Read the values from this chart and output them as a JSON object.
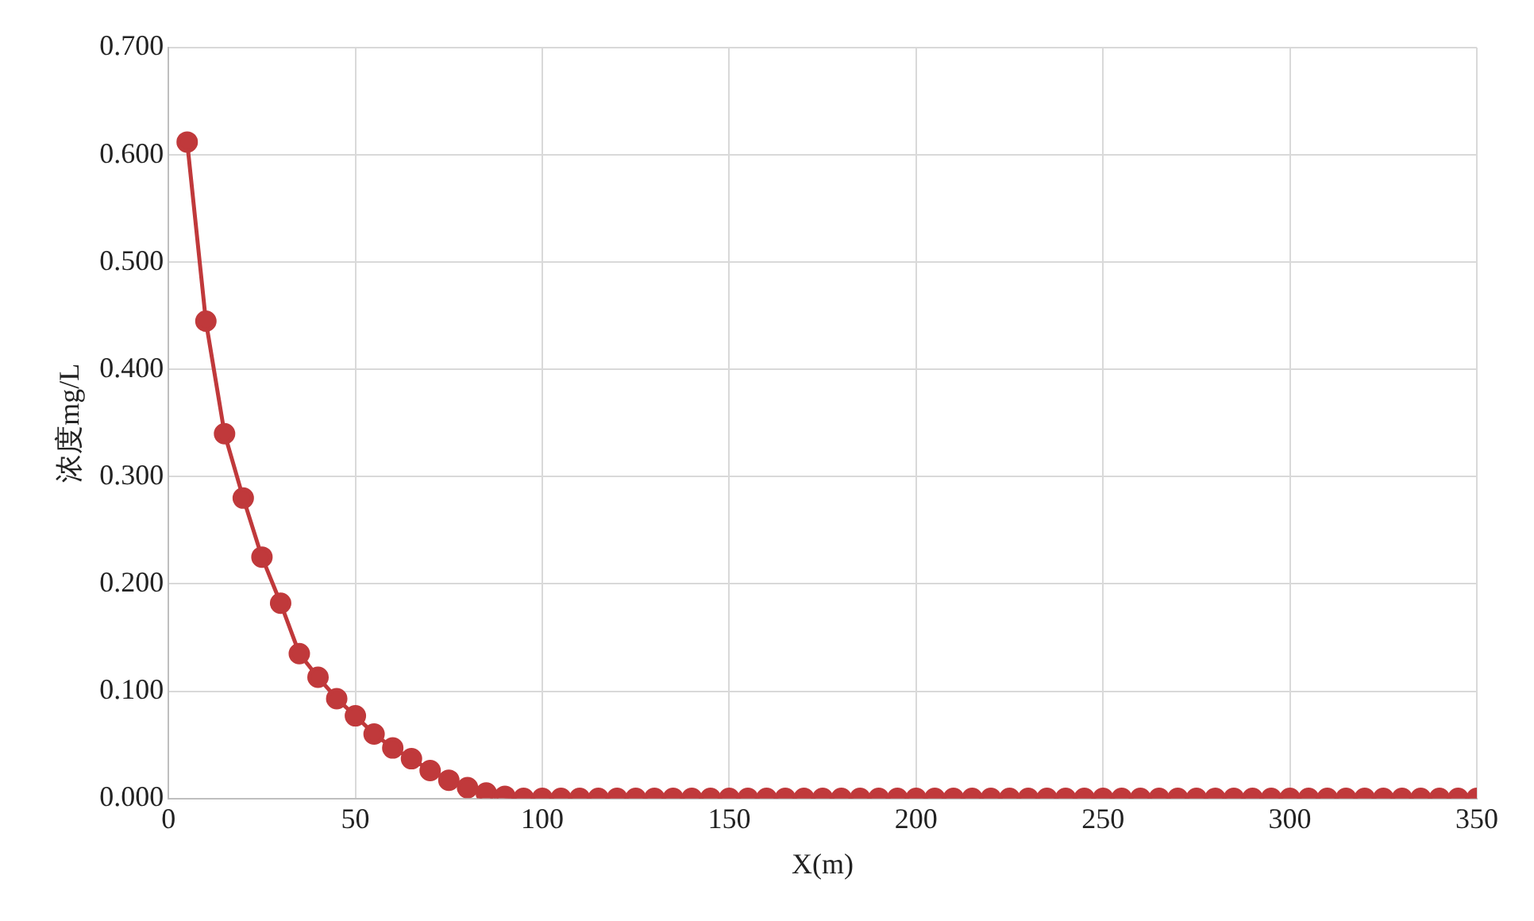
{
  "chart_data": {
    "type": "line",
    "xlabel": "X(m)",
    "ylabel": "浓度mg/L",
    "x": [
      5,
      10,
      15,
      20,
      25,
      30,
      35,
      40,
      45,
      50,
      55,
      60,
      65,
      70,
      75,
      80,
      85,
      90,
      95,
      100,
      105,
      110,
      115,
      120,
      125,
      130,
      135,
      140,
      145,
      150,
      155,
      160,
      165,
      170,
      175,
      180,
      185,
      190,
      195,
      200,
      205,
      210,
      215,
      220,
      225,
      230,
      235,
      240,
      245,
      250,
      255,
      260,
      265,
      270,
      275,
      280,
      285,
      290,
      295,
      300,
      305,
      310,
      315,
      320,
      325,
      330,
      335,
      340,
      345,
      350
    ],
    "series": [
      {
        "color": "#c0393b",
        "values": [
          0.612,
          0.445,
          0.34,
          0.28,
          0.225,
          0.182,
          0.135,
          0.113,
          0.093,
          0.077,
          0.06,
          0.047,
          0.037,
          0.026,
          0.017,
          0.01,
          0.005,
          0.002,
          0,
          0,
          0,
          0,
          0,
          0,
          0,
          0,
          0,
          0,
          0,
          0,
          0,
          0,
          0,
          0,
          0,
          0,
          0,
          0,
          0,
          0,
          0,
          0,
          0,
          0,
          0,
          0,
          0,
          0,
          0,
          0,
          0,
          0,
          0,
          0,
          0,
          0,
          0,
          0,
          0,
          0,
          0,
          0,
          0,
          0,
          0,
          0,
          0,
          0,
          0,
          0
        ]
      }
    ],
    "xlim": [
      0,
      350
    ],
    "xticks": [
      0,
      50,
      100,
      150,
      200,
      250,
      300,
      350
    ],
    "ylim": [
      0,
      0.7
    ],
    "yticks": [
      {
        "value": 0,
        "label": "0.000"
      },
      {
        "value": 0.1,
        "label": "0.100"
      },
      {
        "value": 0.2,
        "label": "0.200"
      },
      {
        "value": 0.3,
        "label": "0.300"
      },
      {
        "value": 0.4,
        "label": "0.400"
      },
      {
        "value": 0.5,
        "label": "0.500"
      },
      {
        "value": 0.6,
        "label": "0.600"
      },
      {
        "value": 0.7,
        "label": "0.700"
      }
    ],
    "grid": true,
    "legend": false,
    "marker": "circle",
    "line_style": "solid"
  }
}
